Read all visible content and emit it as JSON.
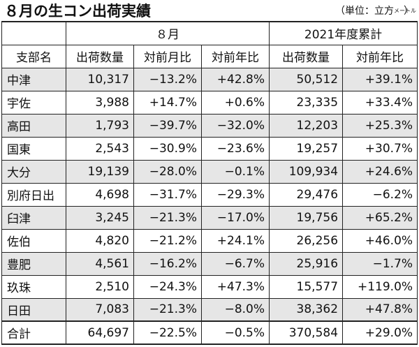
{
  "title": "８月の生コン出荷実績",
  "unit": {
    "open": "（単位：立方",
    "small": "メートル",
    "close": "）"
  },
  "header": {
    "group_august": "８月",
    "group_ytd": "2021年度累計",
    "col_branch": "支部名",
    "col_shipments": "出荷数量",
    "col_mom": "対前月比",
    "col_yoy": "対前年比",
    "col_ytd_shipments": "出荷数量",
    "col_ytd_yoy": "対前年比"
  },
  "rows": [
    {
      "name": "中津",
      "ship": "10,317",
      "mom": "−13.2%",
      "yoy": "+42.8%",
      "ytd": "50,512",
      "ytd_yoy": "+39.1%"
    },
    {
      "name": "宇佐",
      "ship": "3,988",
      "mom": "+14.7%",
      "yoy": "+0.6%",
      "ytd": "23,335",
      "ytd_yoy": "+33.4%"
    },
    {
      "name": "高田",
      "ship": "1,793",
      "mom": "−39.7%",
      "yoy": "−32.0%",
      "ytd": "12,203",
      "ytd_yoy": "+25.3%"
    },
    {
      "name": "国東",
      "ship": "2,543",
      "mom": "−30.9%",
      "yoy": "−23.6%",
      "ytd": "19,257",
      "ytd_yoy": "+30.7%"
    },
    {
      "name": "大分",
      "ship": "19,139",
      "mom": "−28.0%",
      "yoy": "−0.1%",
      "ytd": "109,934",
      "ytd_yoy": "+24.6%"
    },
    {
      "name": "別府日出",
      "ship": "4,698",
      "mom": "−31.7%",
      "yoy": "−29.3%",
      "ytd": "29,476",
      "ytd_yoy": "−6.2%"
    },
    {
      "name": "臼津",
      "ship": "3,245",
      "mom": "−21.3%",
      "yoy": "−17.0%",
      "ytd": "19,756",
      "ytd_yoy": "+65.2%"
    },
    {
      "name": "佐伯",
      "ship": "4,820",
      "mom": "−21.2%",
      "yoy": "+24.1%",
      "ytd": "26,256",
      "ytd_yoy": "+46.0%"
    },
    {
      "name": "豊肥",
      "ship": "4,561",
      "mom": "−16.2%",
      "yoy": "−6.7%",
      "ytd": "25,916",
      "ytd_yoy": "−1.7%"
    },
    {
      "name": "玖珠",
      "ship": "2,510",
      "mom": "−24.3%",
      "yoy": "+47.3%",
      "ytd": "15,577",
      "ytd_yoy": "+119.0%"
    },
    {
      "name": "日田",
      "ship": "7,083",
      "mom": "−21.3%",
      "yoy": "−8.0%",
      "ytd": "38,362",
      "ytd_yoy": "+47.8%"
    }
  ],
  "total": {
    "name": "合計",
    "ship": "64,697",
    "mom": "−22.5%",
    "yoy": "−0.5%",
    "ytd": "370,584",
    "ytd_yoy": "+29.0%"
  }
}
